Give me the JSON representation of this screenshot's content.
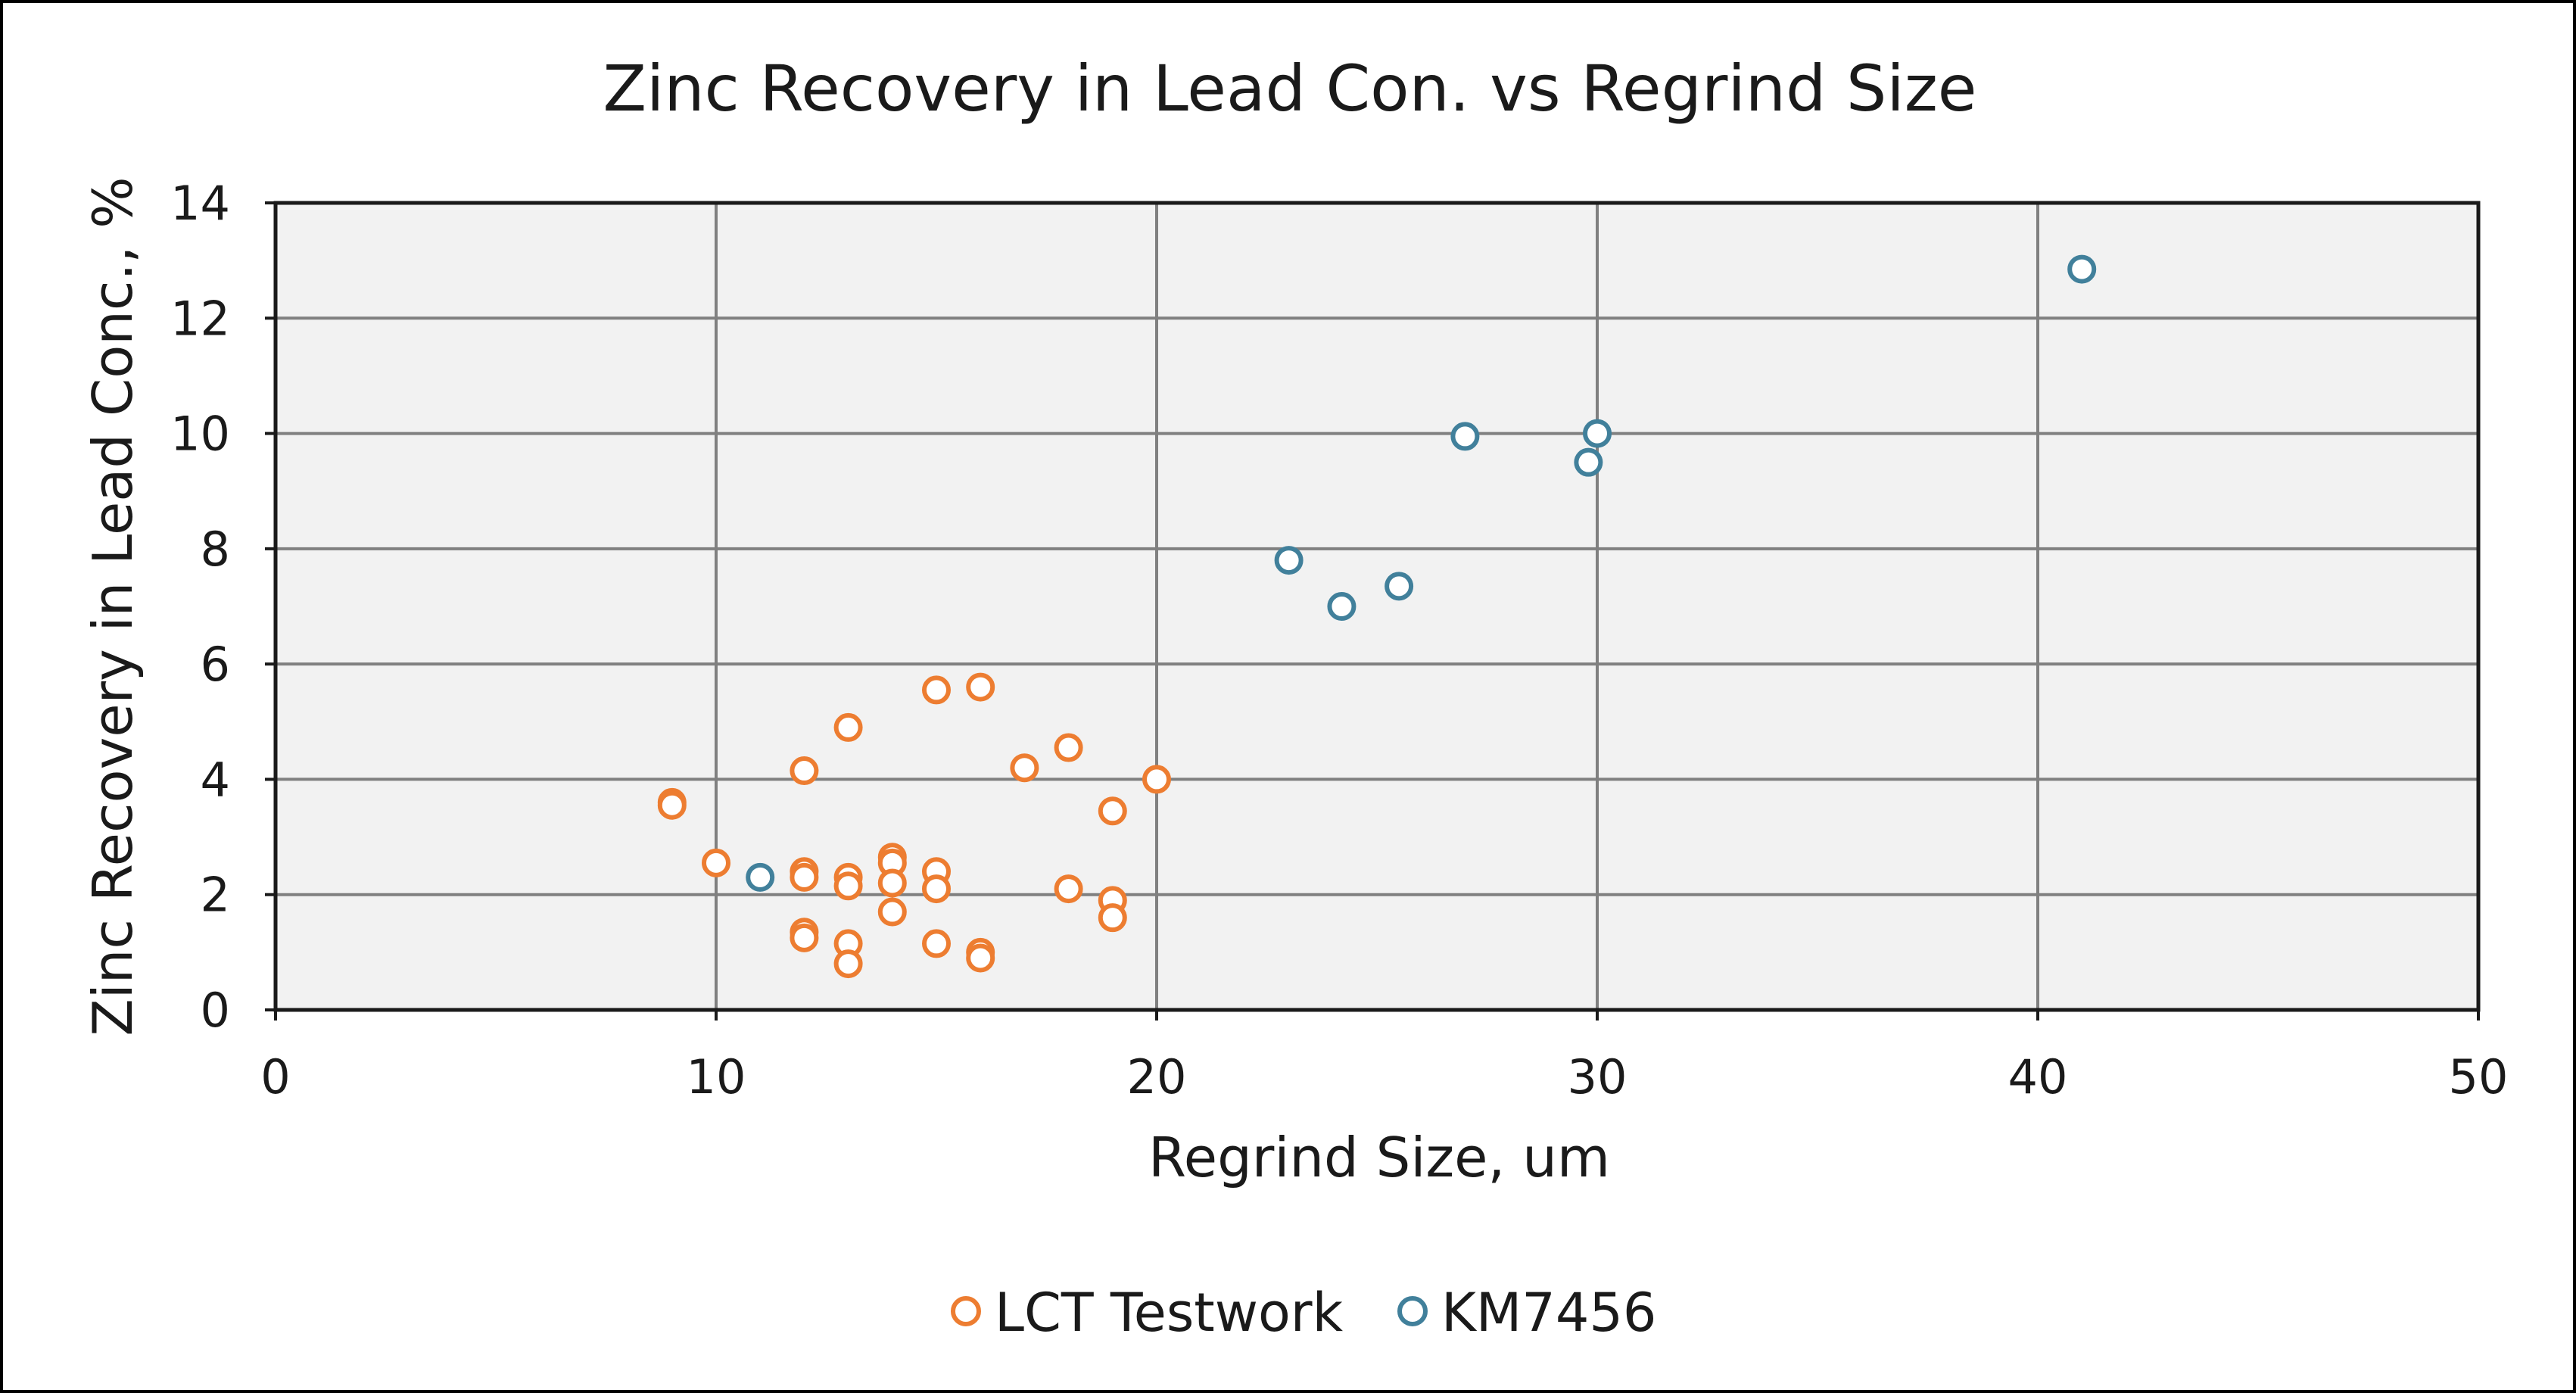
{
  "chart_data": {
    "type": "scatter",
    "title": "Zinc Recovery in Lead Con. vs Regrind Size",
    "xlabel": "Regrind Size, um",
    "ylabel": "Zinc Recovery in Lead Conc., %",
    "xlim": [
      0,
      50
    ],
    "ylim": [
      0,
      14
    ],
    "x_ticks": [
      "0",
      "10",
      "20",
      "30",
      "40",
      "50"
    ],
    "y_ticks": [
      "0",
      "2",
      "4",
      "6",
      "8",
      "10",
      "12",
      "14"
    ],
    "grid": true,
    "legend_position": "bottom",
    "marker": "open-circle",
    "series": [
      {
        "name": "LCT Testwork",
        "color": "#ED7D31",
        "points": [
          {
            "x": 9,
            "y": 3.6
          },
          {
            "x": 9,
            "y": 3.55
          },
          {
            "x": 10,
            "y": 2.55
          },
          {
            "x": 12,
            "y": 4.15
          },
          {
            "x": 12,
            "y": 2.4
          },
          {
            "x": 12,
            "y": 2.3
          },
          {
            "x": 12,
            "y": 1.35
          },
          {
            "x": 12,
            "y": 1.25
          },
          {
            "x": 13,
            "y": 4.9
          },
          {
            "x": 13,
            "y": 2.3
          },
          {
            "x": 13,
            "y": 2.15
          },
          {
            "x": 13,
            "y": 1.15
          },
          {
            "x": 13,
            "y": 0.8
          },
          {
            "x": 14,
            "y": 2.65
          },
          {
            "x": 14,
            "y": 2.55
          },
          {
            "x": 14,
            "y": 2.2
          },
          {
            "x": 14,
            "y": 1.7
          },
          {
            "x": 15,
            "y": 5.55
          },
          {
            "x": 15,
            "y": 2.4
          },
          {
            "x": 15,
            "y": 2.1
          },
          {
            "x": 15,
            "y": 1.15
          },
          {
            "x": 16,
            "y": 5.6
          },
          {
            "x": 16,
            "y": 1.0
          },
          {
            "x": 16,
            "y": 0.9
          },
          {
            "x": 17,
            "y": 4.2
          },
          {
            "x": 18,
            "y": 4.55
          },
          {
            "x": 18,
            "y": 2.1
          },
          {
            "x": 19,
            "y": 3.45
          },
          {
            "x": 19,
            "y": 1.9
          },
          {
            "x": 19,
            "y": 1.6
          },
          {
            "x": 20,
            "y": 4.0
          }
        ]
      },
      {
        "name": "KM7456",
        "color": "#41809B",
        "points": [
          {
            "x": 11,
            "y": 2.3
          },
          {
            "x": 23,
            "y": 7.8
          },
          {
            "x": 24.2,
            "y": 7.0
          },
          {
            "x": 25.5,
            "y": 7.35
          },
          {
            "x": 27,
            "y": 9.95
          },
          {
            "x": 29.8,
            "y": 9.5
          },
          {
            "x": 30,
            "y": 10.0
          },
          {
            "x": 41,
            "y": 12.85
          }
        ]
      }
    ],
    "plot_background": "#F2F2F2",
    "gridline_color": "#808080"
  }
}
